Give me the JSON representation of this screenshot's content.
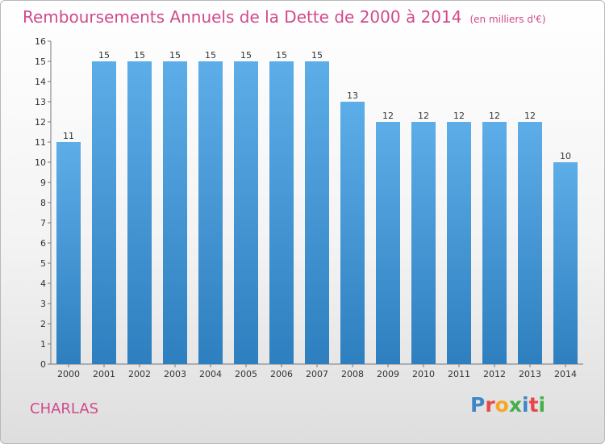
{
  "title": "Remboursements Annuels de la Dette de 2000 à 2014",
  "subtitle": "(en milliers d'€)",
  "location": "CHARLAS",
  "logo": {
    "letters": [
      "P",
      "r",
      "o",
      "x",
      "i",
      "t",
      "i"
    ],
    "colors": [
      "#3d86c8",
      "#e8474a",
      "#f6a623",
      "#44b049",
      "#3d86c8",
      "#e8474a",
      "#44b049"
    ]
  },
  "colors": {
    "bar_top": "#5dade8",
    "bar_bottom": "#2e7fbf",
    "title": "#d04a8c"
  },
  "chart_data": {
    "type": "bar",
    "categories": [
      "2000",
      "2001",
      "2002",
      "2003",
      "2004",
      "2005",
      "2006",
      "2007",
      "2008",
      "2009",
      "2010",
      "2011",
      "2012",
      "2013",
      "2014"
    ],
    "values": [
      11,
      15,
      15,
      15,
      15,
      15,
      15,
      15,
      13,
      12,
      12,
      12,
      12,
      12,
      10
    ],
    "ylim": [
      0,
      16
    ],
    "yticks": [
      0,
      1,
      2,
      3,
      4,
      5,
      6,
      7,
      8,
      9,
      10,
      11,
      12,
      13,
      14,
      15,
      16
    ],
    "grid": false
  }
}
